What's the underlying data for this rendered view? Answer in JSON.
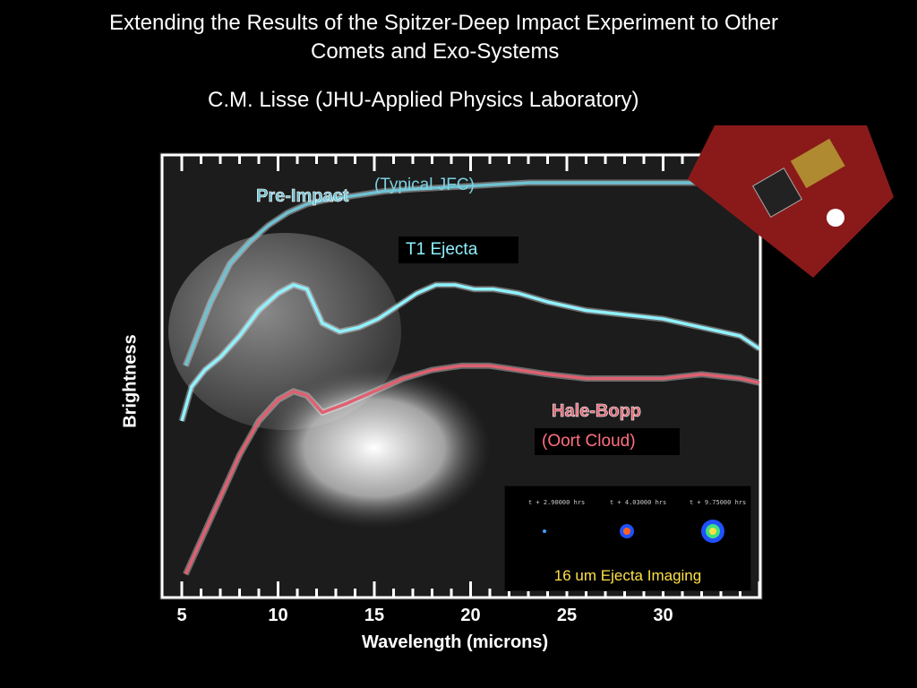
{
  "header": {
    "title_line1": "Extending the Results of the Spitzer-Deep Impact Experiment to Other",
    "title_line2": "Comets and Exo-Systems",
    "author": "C.M. Lisse (JHU-Applied Physics Laboratory)"
  },
  "annotations": {
    "typical_jfc": "(Typical JFC)",
    "t1_ejecta": "T1 Ejecta",
    "oort_cloud": "(Oort Cloud)",
    "ejecta_imaging": "16 um Ejecta Imaging",
    "ejecta_times": [
      "t + 2.90000 hrs",
      "t + 4.03000 hrs",
      "t + 9.75000 hrs"
    ]
  },
  "colors": {
    "pre_impact": "#6fc2d2",
    "t1_ejecta": "#8ff2ff",
    "hale_bopp": "#e06070",
    "axis": "#ffffff"
  },
  "chart_data": {
    "type": "line",
    "xlabel": "Wavelength (microns)",
    "ylabel": "Brightness",
    "xlim": [
      5,
      35
    ],
    "x_ticks": [
      5,
      10,
      15,
      20,
      25,
      30
    ],
    "grid": false,
    "series": [
      {
        "name": "Pre-Impact",
        "color": "#6fc2d2",
        "points": [
          [
            5.2,
            0.53
          ],
          [
            5.8,
            0.6
          ],
          [
            6.5,
            0.68
          ],
          [
            7.5,
            0.77
          ],
          [
            8.5,
            0.82
          ],
          [
            9.5,
            0.86
          ],
          [
            10.5,
            0.89
          ],
          [
            11.5,
            0.91
          ],
          [
            12.5,
            0.92
          ],
          [
            14,
            0.93
          ],
          [
            15.5,
            0.94
          ],
          [
            17,
            0.945
          ],
          [
            19,
            0.95
          ],
          [
            21,
            0.955
          ],
          [
            23,
            0.96
          ],
          [
            25,
            0.96
          ],
          [
            27,
            0.96
          ],
          [
            29,
            0.96
          ],
          [
            31,
            0.96
          ],
          [
            33,
            0.96
          ]
        ]
      },
      {
        "name": "T1 Ejecta",
        "color": "#8ff2ff",
        "points": [
          [
            5.0,
            0.4
          ],
          [
            5.5,
            0.48
          ],
          [
            6.2,
            0.52
          ],
          [
            7,
            0.55
          ],
          [
            8,
            0.6
          ],
          [
            9,
            0.66
          ],
          [
            10,
            0.7
          ],
          [
            10.8,
            0.72
          ],
          [
            11.5,
            0.71
          ],
          [
            12.3,
            0.63
          ],
          [
            13.2,
            0.61
          ],
          [
            14.2,
            0.62
          ],
          [
            15.2,
            0.64
          ],
          [
            16.2,
            0.67
          ],
          [
            17.2,
            0.7
          ],
          [
            18.2,
            0.72
          ],
          [
            19.2,
            0.72
          ],
          [
            20.2,
            0.71
          ],
          [
            21.2,
            0.71
          ],
          [
            22.5,
            0.7
          ],
          [
            24,
            0.68
          ],
          [
            26,
            0.66
          ],
          [
            28,
            0.65
          ],
          [
            30,
            0.64
          ],
          [
            32,
            0.62
          ],
          [
            34,
            0.6
          ],
          [
            35,
            0.57
          ]
        ]
      },
      {
        "name": "Hale-Bopp",
        "color": "#e06070",
        "points": [
          [
            5.2,
            0.04
          ],
          [
            6,
            0.12
          ],
          [
            7,
            0.22
          ],
          [
            8,
            0.32
          ],
          [
            9,
            0.4
          ],
          [
            10,
            0.45
          ],
          [
            10.8,
            0.47
          ],
          [
            11.5,
            0.46
          ],
          [
            12.3,
            0.42
          ],
          [
            13.5,
            0.44
          ],
          [
            15,
            0.47
          ],
          [
            16.5,
            0.5
          ],
          [
            18,
            0.52
          ],
          [
            19.5,
            0.53
          ],
          [
            21,
            0.53
          ],
          [
            22.5,
            0.52
          ],
          [
            24,
            0.51
          ],
          [
            26,
            0.5
          ],
          [
            28,
            0.5
          ],
          [
            30,
            0.5
          ],
          [
            32,
            0.51
          ],
          [
            34,
            0.5
          ],
          [
            35,
            0.49
          ]
        ]
      }
    ]
  }
}
